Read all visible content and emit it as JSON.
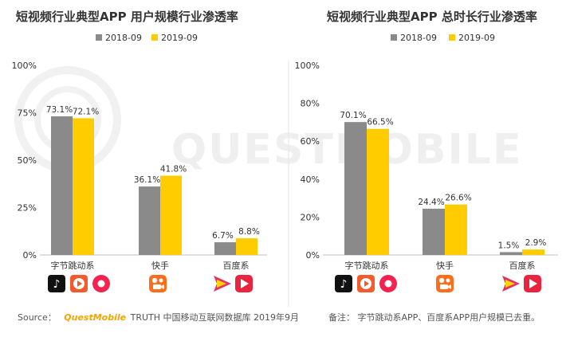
{
  "watermark": "QUESTMOBILE",
  "colors": {
    "series_2018": "#8a8a8a",
    "series_2019": "#ffcc00",
    "axis": "#bfbfbf",
    "brand": "#f5a400"
  },
  "chart_data": [
    {
      "type": "bar",
      "title": "短视频行业典型APP 用户规模行业渗透率",
      "categories": [
        "字节跳动系",
        "快手",
        "百度系"
      ],
      "series": [
        {
          "name": "2018-09",
          "values": [
            73.1,
            36.1,
            6.7
          ],
          "labels": [
            "73.1%",
            "36.1%",
            "6.7%"
          ]
        },
        {
          "name": "2019-09",
          "values": [
            72.1,
            41.8,
            8.8
          ],
          "labels": [
            "72.1%",
            "41.8%",
            "8.8%"
          ]
        }
      ],
      "ylim": [
        0,
        100
      ],
      "yticks": [
        0,
        25,
        50,
        75,
        100
      ],
      "ytick_labels": [
        "0%",
        "25%",
        "50%",
        "75%",
        "100%"
      ],
      "legend": "top-center"
    },
    {
      "type": "bar",
      "title": "短视频行业典型APP 总时长行业渗透率",
      "categories": [
        "字节跳动系",
        "快手",
        "百度系"
      ],
      "series": [
        {
          "name": "2018-09",
          "values": [
            70.1,
            24.4,
            1.5
          ],
          "labels": [
            "70.1%",
            "24.4%",
            "1.5%"
          ]
        },
        {
          "name": "2019-09",
          "values": [
            66.5,
            26.6,
            2.9
          ],
          "labels": [
            "66.5%",
            "26.6%",
            "2.9%"
          ]
        }
      ],
      "ylim": [
        0,
        100
      ],
      "yticks": [
        0,
        20,
        40,
        60,
        80,
        100
      ],
      "ytick_labels": [
        "0%",
        "20%",
        "40%",
        "60%",
        "80%",
        "100%"
      ],
      "legend": "top-center"
    }
  ],
  "app_icons": [
    [
      "douyin-icon",
      "xigua-video-icon",
      "huoshan-video-icon"
    ],
    [
      "kuaishou-icon"
    ],
    [
      "haokan-video-icon",
      "quanmin-video-icon"
    ]
  ],
  "footer": {
    "source_label": "Source：",
    "brand": "QuestMobile",
    "source_text": "TRUTH 中国移动互联网数据库 2019年9月",
    "note": "备注：  字节跳动系APP、百度系APP用户规模已去重。"
  }
}
